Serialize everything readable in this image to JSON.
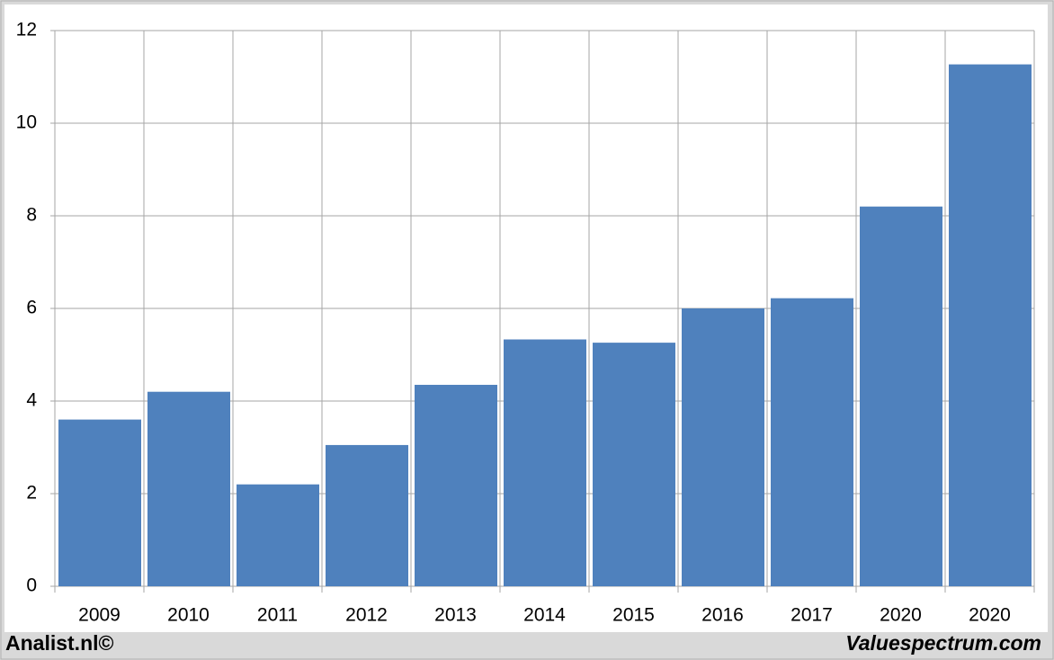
{
  "chart_data": {
    "type": "bar",
    "categories": [
      "2009",
      "2010",
      "2011",
      "2012",
      "2013",
      "2014",
      "2015",
      "2016",
      "2017",
      "2020",
      "2020"
    ],
    "values": [
      3.6,
      4.2,
      2.2,
      3.05,
      4.35,
      5.33,
      5.26,
      6.0,
      6.22,
      8.2,
      11.27
    ],
    "color": "#4f81bd",
    "ylim": [
      0,
      12
    ],
    "yticks": [
      0,
      2,
      4,
      6,
      8,
      10,
      12
    ],
    "grid": true,
    "annotations": [
      "Analist.nl©",
      "Valuespectrum.com"
    ]
  }
}
